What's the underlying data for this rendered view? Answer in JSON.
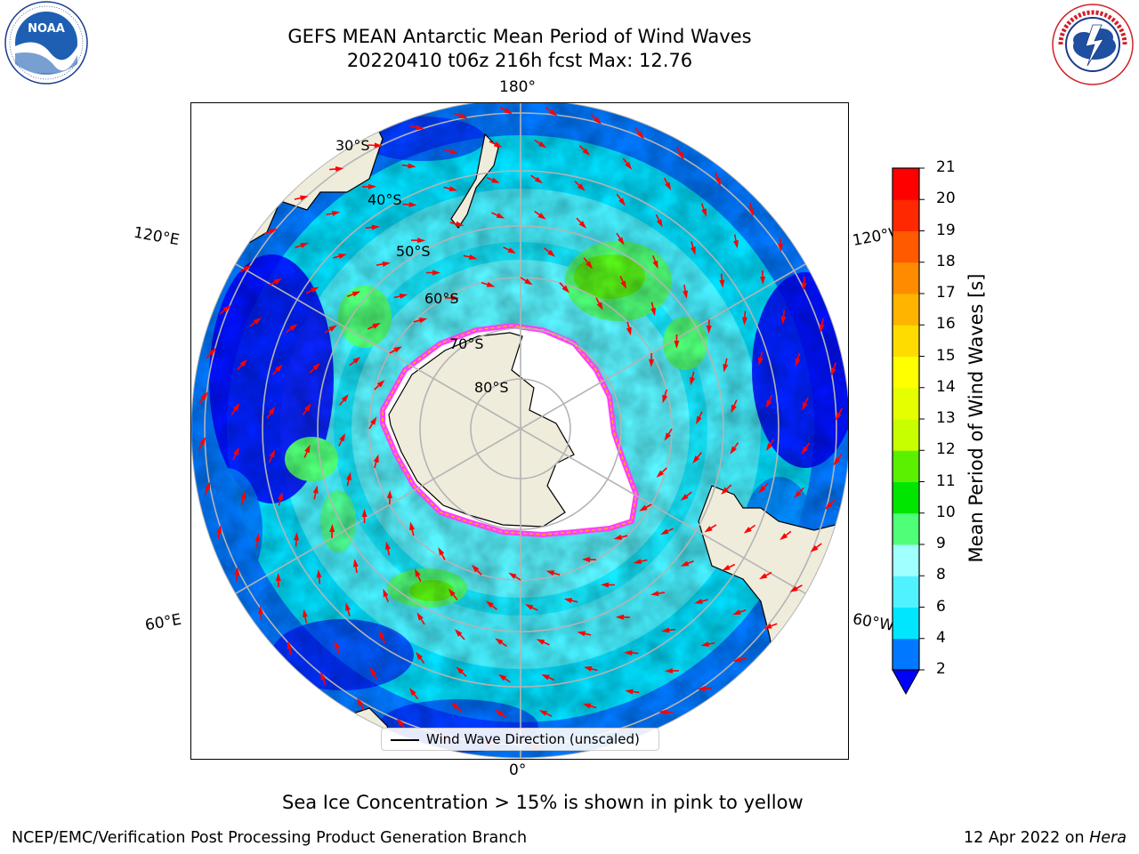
{
  "header": {
    "title_line1": "GEFS MEAN Antarctic Mean Period of Wind Waves",
    "title_line2": "20220410 t06z 216h fcst   Max: 12.76"
  },
  "logos": {
    "noaa": {
      "text": "NOAA",
      "ring_text": "NATIONAL OCEANIC AND ATMOSPHERIC ADMINISTRATION · U.S. DEPARTMENT OF COMMERCE"
    },
    "nws": {
      "ring_text": "NATIONAL WEATHER SERVICE"
    }
  },
  "map": {
    "longitude_labels": {
      "top": "180°",
      "bottom": "0°",
      "upper_left": "120°E",
      "upper_right": "120°W",
      "lower_left": "60°E",
      "lower_right": "60°W"
    },
    "latitude_labels": [
      "30°S",
      "40°S",
      "50°S",
      "60°S",
      "70°S",
      "80°S"
    ],
    "legend_label": "Wind Wave Direction (unscaled)",
    "colors": {
      "land": "#efecdc",
      "ice_edge": "#ff40ff",
      "arrow": "#ff0000",
      "gridline": "#b4b4b4"
    }
  },
  "colorbar": {
    "title": "Mean Period of Wind Waves [s]",
    "ticks": [
      "2",
      "4",
      "6",
      "8",
      "9",
      "10",
      "11",
      "12",
      "13",
      "14",
      "15",
      "16",
      "17",
      "18",
      "19",
      "20",
      "21"
    ],
    "colors": [
      "#0078ff",
      "#00e6ff",
      "#50f2ff",
      "#a0ffff",
      "#50ff78",
      "#00e600",
      "#5af000",
      "#c8ff00",
      "#e6ff00",
      "#ffff00",
      "#ffdc00",
      "#ffb400",
      "#ff8c00",
      "#ff5a00",
      "#ff2800",
      "#ff0000"
    ],
    "under_color": "#0000ff"
  },
  "notes": {
    "sea_ice": "Sea Ice Concentration > 15% is shown in pink to yellow"
  },
  "footer": {
    "left": "NCEP/EMC/Verification Post Processing Product Generation Branch",
    "right_prefix": "12 Apr 2022 on ",
    "right_machine": "Hera"
  }
}
